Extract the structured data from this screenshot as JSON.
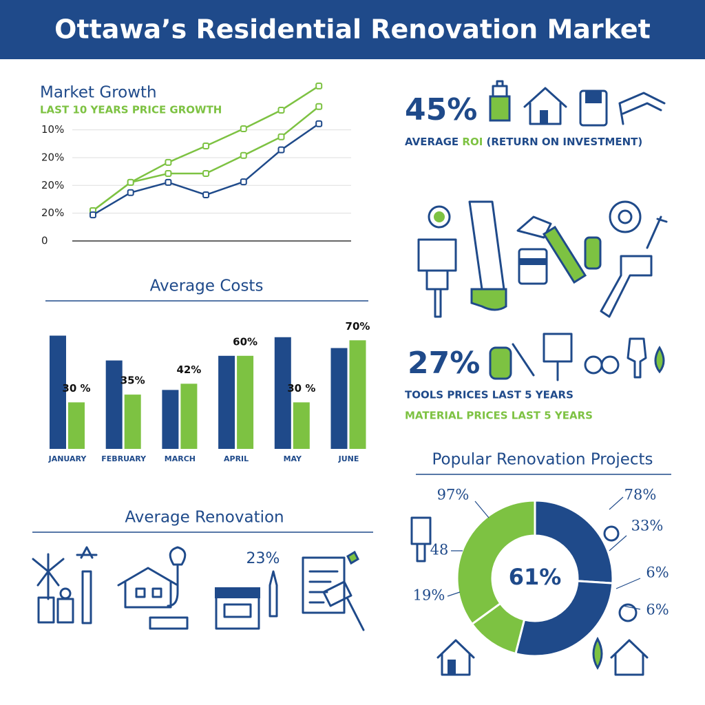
{
  "header": {
    "title": "Ottawa’s Residential Renovation Market"
  },
  "chart_data": [
    {
      "type": "line",
      "title": "Market Growth",
      "subtitle": "LAST 10 YEARS PRICE GROWTH",
      "categories": [
        null,
        null,
        null,
        null,
        null,
        null,
        null
      ],
      "ylim": [
        0,
        5.8
      ],
      "yticks": [
        0,
        {
          "value": 1,
          "label": "20%"
        },
        {
          "value": 2,
          "label": "20%"
        },
        {
          "value": 3,
          "label": "20%"
        },
        {
          "value": 4,
          "label": "10%"
        }
      ],
      "grid": true,
      "series": [
        {
          "color": "#7dc242",
          "values": [
            1.09,
            2.11,
            2.83,
            3.42,
            4.04,
            4.71,
            5.58
          ]
        },
        {
          "color": "#7dc242",
          "values": [
            1.09,
            2.11,
            2.43,
            2.43,
            3.08,
            3.75,
            4.84
          ]
        },
        {
          "color": "#1f4a8a",
          "values": [
            0.94,
            1.74,
            2.11,
            1.66,
            2.13,
            3.28,
            4.22
          ]
        }
      ]
    },
    {
      "type": "bar",
      "title": "Average Costs",
      "categories": [
        "JANUARY",
        "FEBRUARY",
        "MARCH",
        "APRIL",
        "MAY",
        "JUNE"
      ],
      "ylim": [
        0,
        75
      ],
      "series": [
        {
          "color": "#1f4a8a",
          "values": [
            73,
            57,
            38,
            60,
            72,
            65
          ]
        },
        {
          "color": "#7dc242",
          "values": [
            30,
            35,
            42,
            60,
            30,
            70
          ],
          "value_labels": [
            "30 %",
            "35%",
            "42%",
            "60%",
            "30 %",
            "70%"
          ]
        }
      ]
    },
    {
      "type": "pie",
      "title": "Popular Renovation Projects",
      "center_label": "61%",
      "values": [
        26,
        28,
        11,
        35
      ],
      "colors": [
        "#1f4a8a",
        "#1f4a8a",
        "#7dc242",
        "#7dc242"
      ],
      "annotations": [
        "97%",
        "78%",
        "33%",
        "48",
        "6%",
        "19%",
        "6%"
      ]
    }
  ],
  "roi": {
    "value": "45%",
    "label_start": "AVERAGE ",
    "label_highlight": "ROI",
    "label_end": " (RETURN ON INVESTMENT)"
  },
  "prices": {
    "value": "27%",
    "tools": "TOOLS PRICES LAST 5 YEARS",
    "materials": "MATERIAL PRICES LAST 5 YEARS"
  },
  "renovation": {
    "title": "Average Renovation",
    "value": "23%"
  }
}
